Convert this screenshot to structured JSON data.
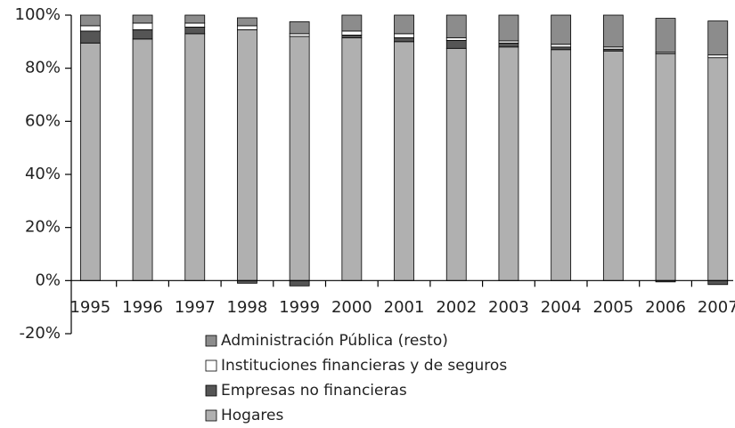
{
  "chart_data": {
    "type": "stacked_bar",
    "categories": [
      "1995",
      "1996",
      "1997",
      "1998",
      "1999",
      "2000",
      "2001",
      "2002",
      "2003",
      "2004",
      "2005",
      "2006",
      "2007"
    ],
    "series": [
      {
        "name": "Hogares",
        "color": "#b0b0b0",
        "values": [
          89.5,
          91,
          93,
          94.5,
          92,
          91.5,
          90,
          87.5,
          88,
          87,
          86.5,
          85.5,
          84
        ]
      },
      {
        "name": "Empresas no financieras",
        "color": "#555555",
        "values": [
          4.5,
          3.5,
          2.5,
          -1,
          -2,
          1,
          1.5,
          3,
          1.5,
          1,
          0.7,
          -0.5,
          -1.5
        ]
      },
      {
        "name": "Instituciones financieras y de seguros",
        "color": "#ffffff",
        "values": [
          2,
          2.5,
          1.5,
          1.5,
          1,
          1.5,
          1.5,
          1,
          0.8,
          1,
          0.8,
          0.5,
          1
        ]
      },
      {
        "name": "Administración Pública (resto)",
        "color": "#8c8c8c",
        "values": [
          4,
          3,
          3,
          3,
          4.5,
          6,
          7,
          8.5,
          9.7,
          11,
          12,
          12.8,
          12.8
        ]
      }
    ],
    "ylim": [
      -20,
      100
    ],
    "yticks": [
      {
        "value": -20,
        "label": "-20%"
      },
      {
        "value": 0,
        "label": "0%"
      },
      {
        "value": 20,
        "label": "20%"
      },
      {
        "value": 40,
        "label": "40%"
      },
      {
        "value": 60,
        "label": "60%"
      },
      {
        "value": 80,
        "label": "80%"
      },
      {
        "value": 100,
        "label": "100%"
      }
    ]
  }
}
